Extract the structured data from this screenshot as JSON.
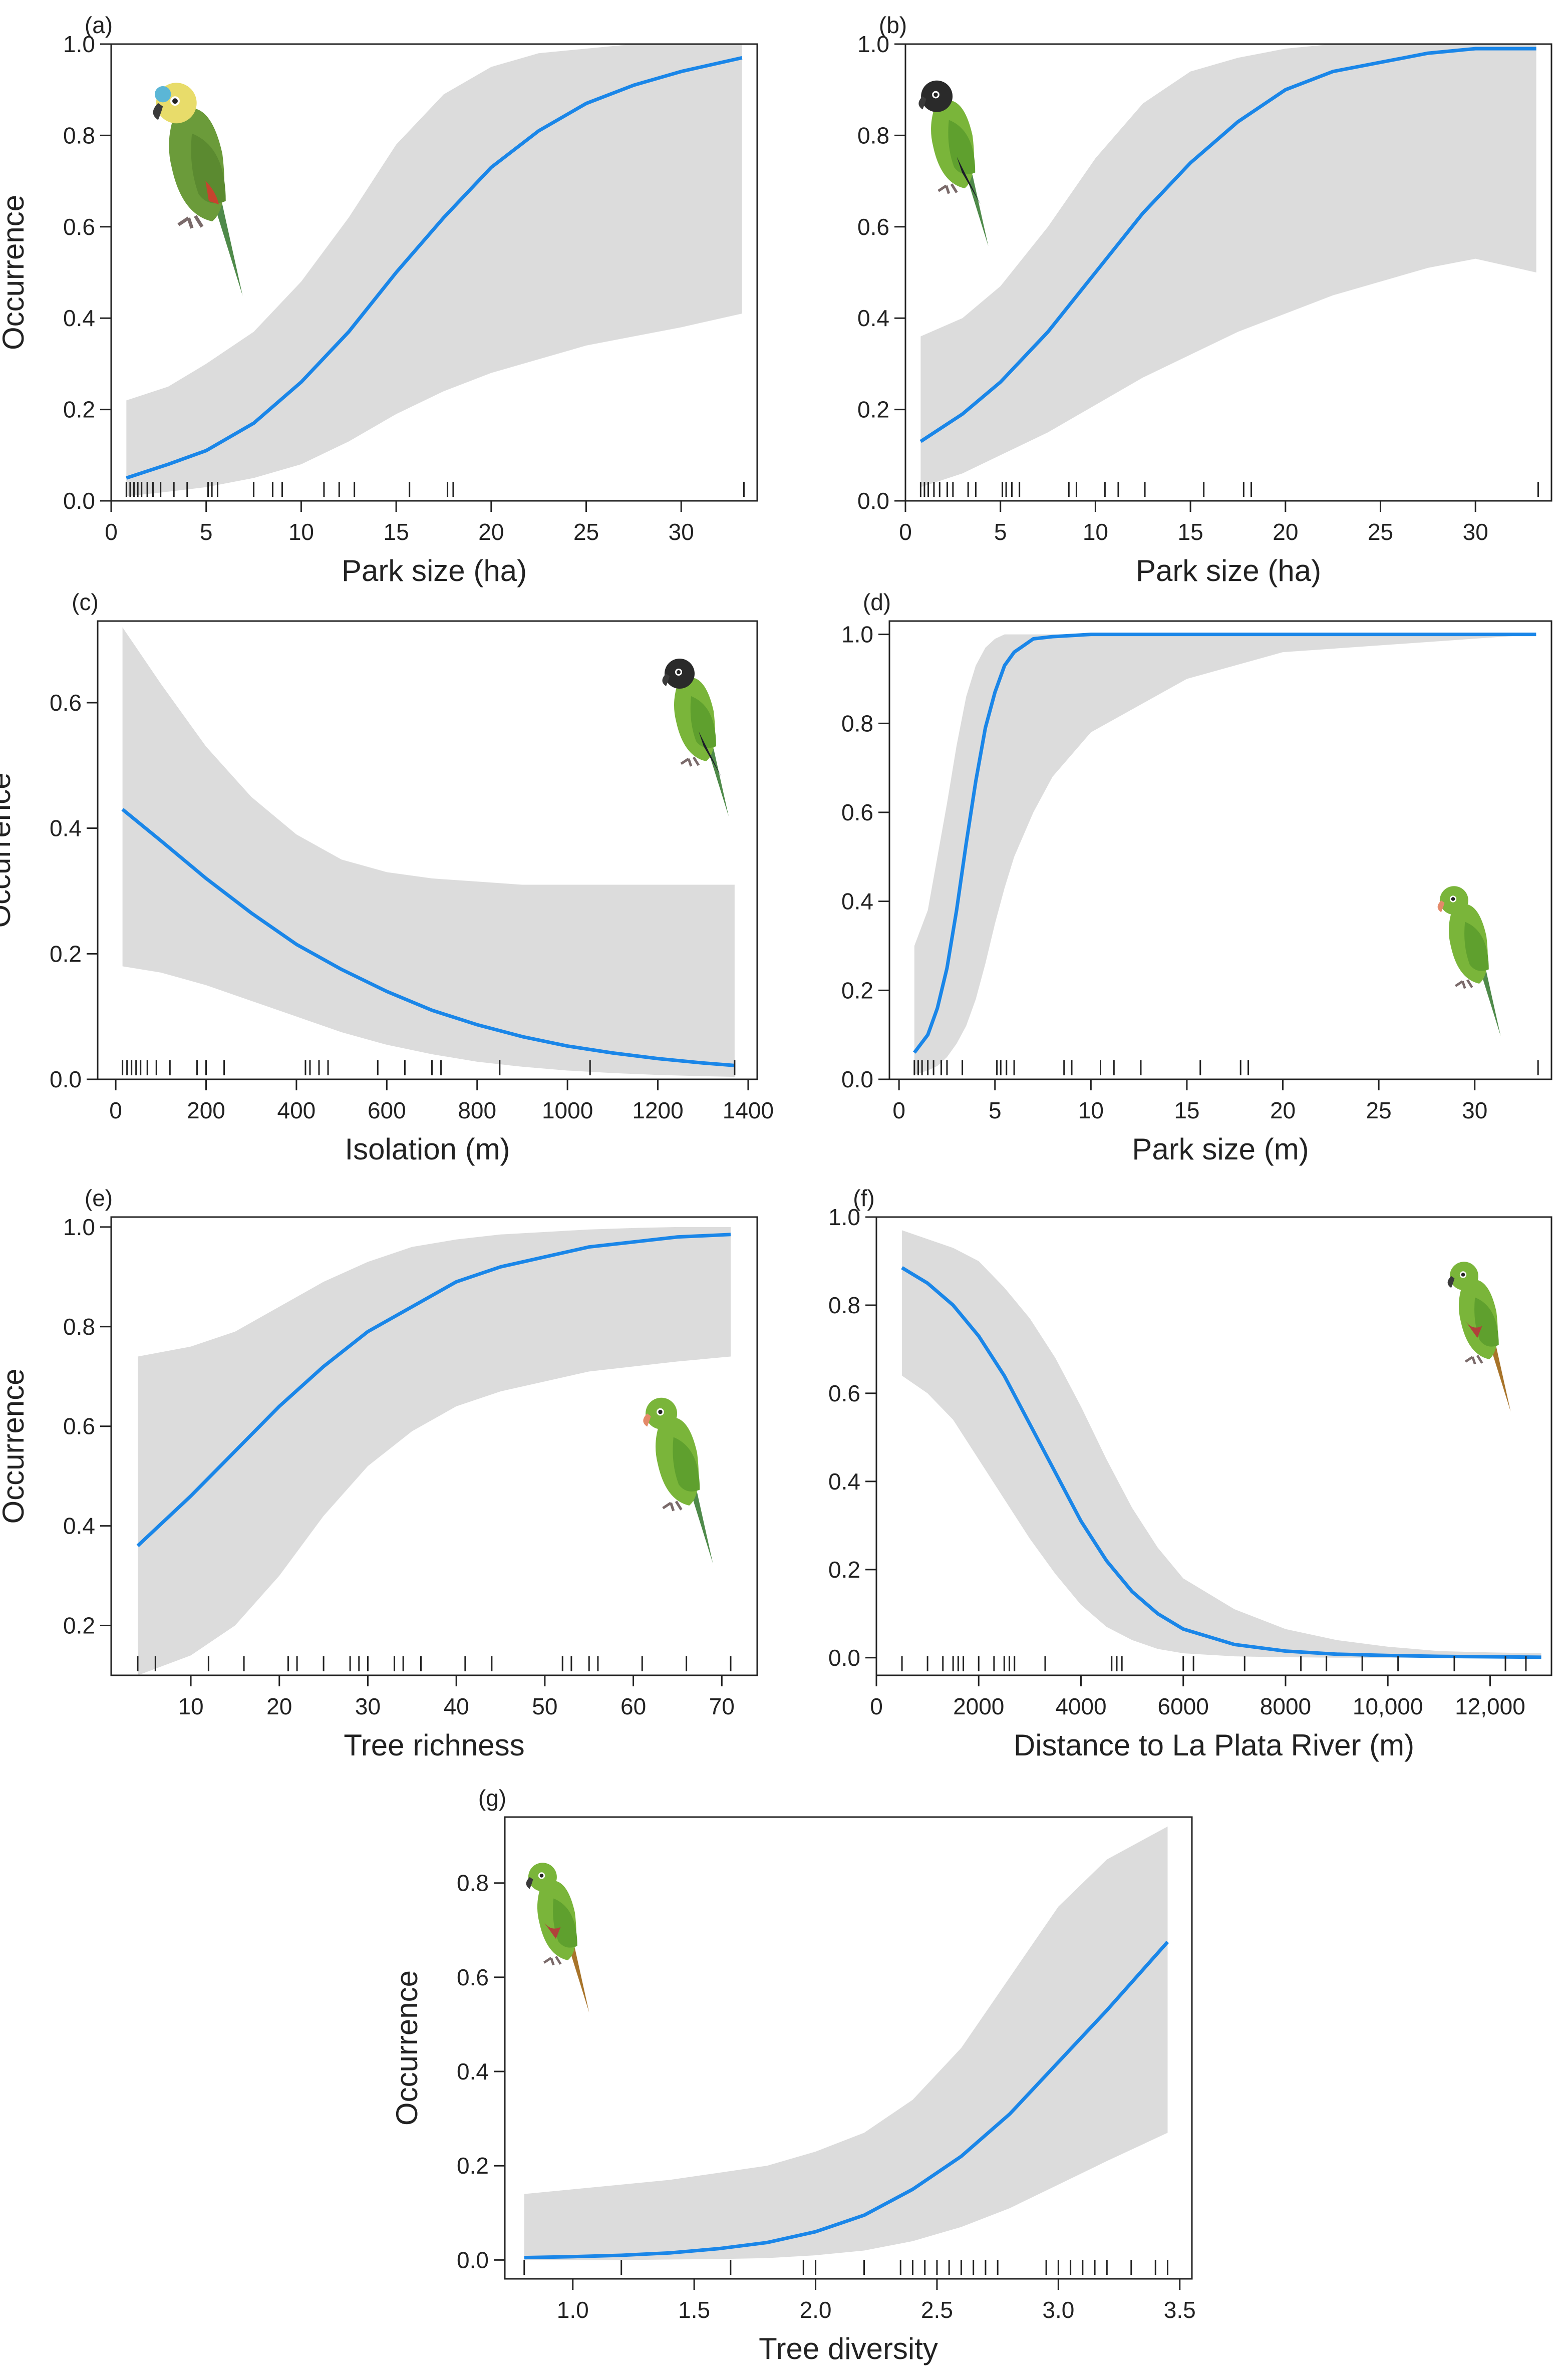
{
  "figure": {
    "style": {
      "curve_color": "#1a86e8",
      "band_color": "#dcdcdc",
      "axis_color": "#222222"
    }
  },
  "chart_data": [
    {
      "panel": "(a)",
      "type": "line",
      "ylabel": "Occurrence",
      "xlabel": "Park size (ha)",
      "xlim": [
        0,
        34
      ],
      "ylim": [
        0,
        1
      ],
      "xticks": [
        0,
        5,
        10,
        15,
        20,
        25,
        30
      ],
      "xticklabels": [
        "0",
        "5",
        "10",
        "15",
        "20",
        "25",
        "30"
      ],
      "yticks": [
        0,
        0.2,
        0.4,
        0.6,
        0.8,
        1.0
      ],
      "yticklabels": [
        "0.0",
        "0.2",
        "0.4",
        "0.6",
        "0.8",
        "1.0"
      ],
      "x": [
        0.8,
        3,
        5,
        7.5,
        10,
        12.5,
        15,
        17.5,
        20,
        22.5,
        25,
        27.5,
        30,
        33.2
      ],
      "y": [
        0.05,
        0.08,
        0.11,
        0.17,
        0.26,
        0.37,
        0.5,
        0.62,
        0.73,
        0.81,
        0.87,
        0.91,
        0.94,
        0.97
      ],
      "lower": [
        0.01,
        0.02,
        0.03,
        0.05,
        0.08,
        0.13,
        0.19,
        0.24,
        0.28,
        0.31,
        0.34,
        0.36,
        0.38,
        0.41
      ],
      "upper": [
        0.22,
        0.25,
        0.3,
        0.37,
        0.48,
        0.62,
        0.78,
        0.89,
        0.95,
        0.98,
        0.99,
        1.0,
        1.0,
        1.0
      ],
      "rug": [
        0.8,
        1.0,
        1.2,
        1.4,
        1.6,
        1.9,
        2.2,
        2.6,
        3.3,
        4.0,
        5.1,
        5.3,
        5.6,
        7.5,
        8.5,
        9.0,
        11.2,
        12.0,
        12.8,
        15.7,
        17.7,
        18.0,
        33.3
      ],
      "icon": "blue-fronted-amazon-parrot-icon"
    },
    {
      "panel": "(b)",
      "type": "line",
      "ylabel": "",
      "xlabel": "Park size (ha)",
      "xlim": [
        0,
        34
      ],
      "ylim": [
        0,
        1
      ],
      "xticks": [
        0,
        5,
        10,
        15,
        20,
        25,
        30
      ],
      "xticklabels": [
        "0",
        "5",
        "10",
        "15",
        "20",
        "25",
        "30"
      ],
      "yticks": [
        0,
        0.2,
        0.4,
        0.6,
        0.8,
        1.0
      ],
      "yticklabels": [
        "0.0",
        "0.2",
        "0.4",
        "0.6",
        "0.8",
        "1.0"
      ],
      "x": [
        0.8,
        3,
        5,
        7.5,
        10,
        12.5,
        15,
        17.5,
        20,
        22.5,
        25,
        27.5,
        30,
        33.2
      ],
      "y": [
        0.13,
        0.19,
        0.26,
        0.37,
        0.5,
        0.63,
        0.74,
        0.83,
        0.9,
        0.94,
        0.96,
        0.98,
        0.99,
        0.99
      ],
      "lower": [
        0.03,
        0.06,
        0.1,
        0.15,
        0.21,
        0.27,
        0.32,
        0.37,
        0.41,
        0.45,
        0.48,
        0.51,
        0.53,
        0.5
      ],
      "upper": [
        0.36,
        0.4,
        0.47,
        0.6,
        0.75,
        0.87,
        0.94,
        0.97,
        0.99,
        1.0,
        1.0,
        1.0,
        1.0,
        1.0
      ],
      "rug": [
        0.8,
        1.0,
        1.2,
        1.5,
        1.8,
        2.2,
        2.5,
        3.3,
        3.7,
        5.1,
        5.3,
        5.6,
        6.0,
        8.6,
        9.0,
        10.5,
        11.2,
        12.6,
        15.7,
        17.8,
        18.2,
        33.3
      ],
      "icon": "nanday-parakeet-icon"
    },
    {
      "panel": "(c)",
      "type": "line",
      "ylabel": "Occurrence",
      "xlabel": "Isolation (m)",
      "xlim": [
        -40,
        1420
      ],
      "ylim": [
        0,
        0.73
      ],
      "xticks": [
        0,
        200,
        400,
        600,
        800,
        1000,
        1200,
        1400
      ],
      "xticklabels": [
        "0",
        "200",
        "400",
        "600",
        "800",
        "1000",
        "1200",
        "1400"
      ],
      "yticks": [
        0,
        0.2,
        0.4,
        0.6
      ],
      "yticklabels": [
        "0.0",
        "0.2",
        "0.4",
        "0.6"
      ],
      "x": [
        15,
        100,
        200,
        300,
        400,
        500,
        600,
        700,
        800,
        900,
        1000,
        1100,
        1200,
        1300,
        1370
      ],
      "y": [
        0.43,
        0.38,
        0.32,
        0.265,
        0.215,
        0.175,
        0.14,
        0.11,
        0.087,
        0.068,
        0.053,
        0.042,
        0.033,
        0.026,
        0.022
      ],
      "lower": [
        0.18,
        0.17,
        0.15,
        0.125,
        0.1,
        0.075,
        0.055,
        0.04,
        0.028,
        0.02,
        0.014,
        0.01,
        0.007,
        0.005,
        0.004
      ],
      "upper": [
        0.72,
        0.63,
        0.53,
        0.45,
        0.39,
        0.35,
        0.33,
        0.32,
        0.315,
        0.31,
        0.31,
        0.31,
        0.31,
        0.31,
        0.31
      ],
      "rug": [
        15,
        25,
        35,
        45,
        55,
        70,
        90,
        120,
        180,
        200,
        240,
        420,
        430,
        450,
        470,
        580,
        640,
        700,
        720,
        850,
        1050,
        1370
      ],
      "icon": "nanday-parakeet-icon"
    },
    {
      "panel": "(d)",
      "type": "line",
      "ylabel": "",
      "xlabel": "Park size (m)",
      "xlim": [
        -0.5,
        34
      ],
      "ylim": [
        0,
        1.03
      ],
      "xticks": [
        0,
        5,
        10,
        15,
        20,
        25,
        30
      ],
      "xticklabels": [
        "0",
        "5",
        "10",
        "15",
        "20",
        "25",
        "30"
      ],
      "yticks": [
        0,
        0.2,
        0.4,
        0.6,
        0.8,
        1.0
      ],
      "yticklabels": [
        "0.0",
        "0.2",
        "0.4",
        "0.6",
        "0.8",
        "1.0"
      ],
      "x": [
        0.8,
        1.5,
        2.0,
        2.5,
        3.0,
        3.5,
        4.0,
        4.5,
        5.0,
        5.5,
        6.0,
        7.0,
        8.0,
        10.0,
        15.0,
        20.0,
        33.2
      ],
      "y": [
        0.06,
        0.1,
        0.16,
        0.25,
        0.38,
        0.53,
        0.67,
        0.79,
        0.87,
        0.93,
        0.96,
        0.99,
        0.995,
        1.0,
        1.0,
        1.0,
        1.0
      ],
      "lower": [
        0.01,
        0.02,
        0.03,
        0.05,
        0.08,
        0.12,
        0.18,
        0.26,
        0.35,
        0.43,
        0.5,
        0.6,
        0.68,
        0.78,
        0.9,
        0.96,
        1.0
      ],
      "upper": [
        0.3,
        0.38,
        0.5,
        0.62,
        0.75,
        0.86,
        0.93,
        0.97,
        0.99,
        1.0,
        1.0,
        1.0,
        1.0,
        1.0,
        1.0,
        1.0,
        1.0
      ],
      "rug": [
        0.8,
        1.0,
        1.2,
        1.5,
        1.8,
        2.2,
        2.5,
        3.3,
        5.1,
        5.3,
        5.6,
        6.0,
        8.6,
        9.0,
        10.5,
        11.2,
        12.6,
        15.7,
        17.8,
        18.2,
        33.3
      ],
      "icon": "green-parakeet-icon"
    },
    {
      "panel": "(e)",
      "type": "line",
      "ylabel": "Occurrence",
      "xlabel": "Tree richness",
      "xlim": [
        1,
        74
      ],
      "ylim": [
        0.1,
        1.02
      ],
      "xticks": [
        10,
        20,
        30,
        40,
        50,
        60,
        70
      ],
      "xticklabels": [
        "10",
        "20",
        "30",
        "40",
        "50",
        "60",
        "70"
      ],
      "yticks": [
        0.2,
        0.4,
        0.6,
        0.8,
        1.0
      ],
      "yticklabels": [
        "0.2",
        "0.4",
        "0.6",
        "0.8",
        "1.0"
      ],
      "x": [
        4,
        10,
        15,
        20,
        25,
        30,
        35,
        40,
        45,
        50,
        55,
        60,
        65,
        71
      ],
      "y": [
        0.36,
        0.46,
        0.55,
        0.64,
        0.72,
        0.79,
        0.84,
        0.89,
        0.92,
        0.94,
        0.96,
        0.97,
        0.98,
        0.985
      ],
      "lower": [
        0.1,
        0.14,
        0.2,
        0.3,
        0.42,
        0.52,
        0.59,
        0.64,
        0.67,
        0.69,
        0.71,
        0.72,
        0.73,
        0.74
      ],
      "upper": [
        0.74,
        0.76,
        0.79,
        0.84,
        0.89,
        0.93,
        0.96,
        0.975,
        0.985,
        0.99,
        0.995,
        0.998,
        1.0,
        1.0
      ],
      "rug": [
        4,
        6,
        12,
        16,
        21,
        22,
        25,
        28,
        29,
        30,
        33,
        34,
        36,
        41,
        44,
        52,
        53,
        55,
        56,
        61,
        66,
        71
      ],
      "icon": "green-parakeet-icon"
    },
    {
      "panel": "(f)",
      "type": "line",
      "ylabel": "",
      "xlabel": "Distance to La Plata River (m)",
      "xlim": [
        0,
        13200
      ],
      "ylim": [
        -0.04,
        1.0
      ],
      "xticks": [
        0,
        2000,
        4000,
        6000,
        8000,
        10000,
        12000
      ],
      "xticklabels": [
        "0",
        "2000",
        "4000",
        "6000",
        "8000",
        "10,000",
        "12,000"
      ],
      "yticks": [
        0,
        0.2,
        0.4,
        0.6,
        0.8,
        1.0
      ],
      "yticklabels": [
        "0.0",
        "0.2",
        "0.4",
        "0.6",
        "0.8",
        "1.0"
      ],
      "x": [
        500,
        1000,
        1500,
        2000,
        2500,
        3000,
        3500,
        4000,
        4500,
        5000,
        5500,
        6000,
        7000,
        8000,
        9000,
        10000,
        11000,
        12000,
        13000
      ],
      "y": [
        0.885,
        0.85,
        0.8,
        0.73,
        0.64,
        0.53,
        0.42,
        0.31,
        0.22,
        0.15,
        0.1,
        0.065,
        0.03,
        0.015,
        0.008,
        0.005,
        0.003,
        0.002,
        0.001
      ],
      "lower": [
        0.64,
        0.6,
        0.54,
        0.45,
        0.36,
        0.27,
        0.19,
        0.12,
        0.07,
        0.04,
        0.02,
        0.01,
        0.003,
        0.001,
        0.0,
        0.0,
        0.0,
        0.0,
        0.0
      ],
      "upper": [
        0.97,
        0.95,
        0.93,
        0.9,
        0.84,
        0.77,
        0.68,
        0.57,
        0.45,
        0.34,
        0.25,
        0.18,
        0.11,
        0.065,
        0.04,
        0.025,
        0.015,
        0.012,
        0.01
      ],
      "rug": [
        500,
        1000,
        1300,
        1500,
        1600,
        1700,
        2000,
        2300,
        2500,
        2600,
        2700,
        3300,
        4600,
        4700,
        4800,
        6000,
        6200,
        7200,
        8300,
        8800,
        9500,
        10200,
        11300,
        12300,
        12700
      ],
      "icon": "maroon-bellied-conure-icon"
    },
    {
      "panel": "(g)",
      "type": "line",
      "ylabel": "Occurrence",
      "xlabel": "Tree diversity",
      "xlim": [
        0.72,
        3.55
      ],
      "ylim": [
        -0.04,
        0.94
      ],
      "xticks": [
        1.0,
        1.5,
        2.0,
        2.5,
        3.0,
        3.5
      ],
      "xticklabels": [
        "1.0",
        "1.5",
        "2.0",
        "2.5",
        "3.0",
        "3.5"
      ],
      "yticks": [
        0,
        0.2,
        0.4,
        0.6,
        0.8
      ],
      "yticklabels": [
        "0.0",
        "0.2",
        "0.4",
        "0.6",
        "0.8"
      ],
      "x": [
        0.8,
        1.0,
        1.2,
        1.4,
        1.6,
        1.8,
        2.0,
        2.2,
        2.4,
        2.6,
        2.8,
        3.0,
        3.2,
        3.45
      ],
      "y": [
        0.005,
        0.007,
        0.01,
        0.015,
        0.024,
        0.037,
        0.06,
        0.095,
        0.15,
        0.22,
        0.31,
        0.42,
        0.53,
        0.675
      ],
      "lower": [
        0.0,
        0.0,
        0.0,
        0.001,
        0.002,
        0.004,
        0.01,
        0.02,
        0.04,
        0.07,
        0.11,
        0.16,
        0.21,
        0.27
      ],
      "upper": [
        0.14,
        0.15,
        0.16,
        0.17,
        0.185,
        0.2,
        0.23,
        0.27,
        0.34,
        0.45,
        0.6,
        0.75,
        0.85,
        0.92
      ],
      "rug": [
        0.8,
        1.2,
        1.65,
        1.95,
        2.0,
        2.2,
        2.35,
        2.4,
        2.45,
        2.5,
        2.55,
        2.6,
        2.65,
        2.7,
        2.75,
        2.95,
        3.0,
        3.05,
        3.1,
        3.15,
        3.2,
        3.3,
        3.4,
        3.45
      ],
      "icon": "maroon-bellied-conure-icon"
    }
  ]
}
